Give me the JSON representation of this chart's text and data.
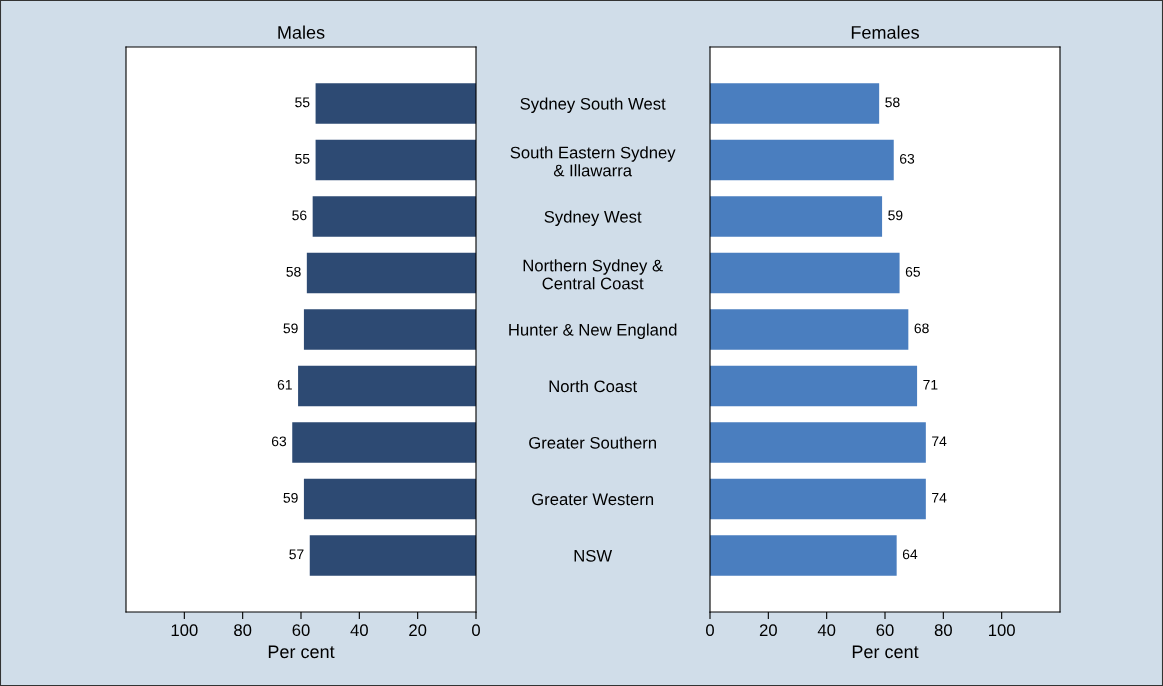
{
  "chart_data": [
    {
      "type": "bar",
      "title": "Males",
      "xlabel": "Per cent",
      "orientation": "horizontal",
      "data_labels": true,
      "grid": false,
      "legend": false,
      "categories": [
        "Sydney South West",
        "South Eastern Sydney\n& Illawarra",
        "Sydney West",
        "Northern Sydney &\nCentral Coast",
        "Hunter & New England",
        "North Coast",
        "Greater Southern",
        "Greater Western",
        "NSW"
      ],
      "series": [
        {
          "color": "#2d4a73",
          "values": [
            55,
            55,
            56,
            58,
            59,
            61,
            63,
            59,
            57
          ]
        }
      ],
      "xlim": [
        120,
        0
      ],
      "xticks": [
        100,
        80,
        60,
        40,
        20,
        0
      ]
    },
    {
      "type": "bar",
      "title": "Females",
      "xlabel": "Per cent",
      "orientation": "horizontal",
      "data_labels": true,
      "grid": false,
      "legend": false,
      "tick_labels": "x",
      "series": [
        {
          "color": "#4a7ebf",
          "values": [
            58,
            63,
            59,
            65,
            68,
            71,
            74,
            74,
            64
          ]
        }
      ],
      "xlim": [
        0,
        120
      ],
      "xticks": [
        0,
        20,
        40,
        60,
        80,
        100
      ]
    }
  ]
}
